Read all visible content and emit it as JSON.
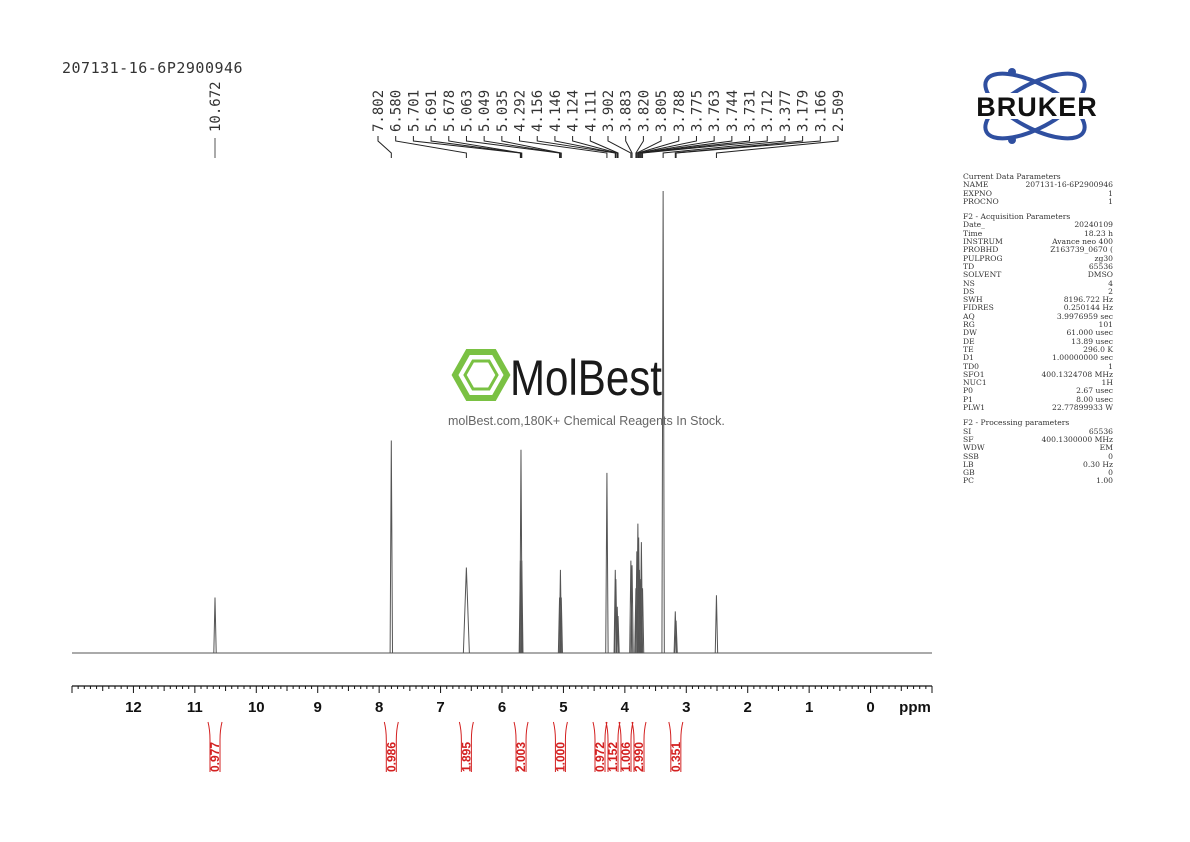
{
  "sample_id": "207131-16-6P2900946",
  "brand": "BRUKER",
  "watermark": {
    "title": "MolBest",
    "subtitle": "molBest.com,180K+ Chemical Reagents In Stock."
  },
  "colors": {
    "spectrum": "#555555",
    "integral": "#d32020",
    "watermark_green": "#7ac143",
    "bruker_blue": "#2f4fa0"
  },
  "chart_data": {
    "type": "line",
    "xlabel": "ppm",
    "xlim": [
      13,
      -1
    ],
    "x_reversed": true,
    "ticks": [
      "12",
      "11",
      "10",
      "9",
      "8",
      "7",
      "6",
      "5",
      "4",
      "3",
      "2",
      "1",
      "0"
    ],
    "peak_labels": [
      "10.672",
      "7.802",
      "6.580",
      "5.701",
      "5.691",
      "5.678",
      "5.063",
      "5.049",
      "5.035",
      "4.292",
      "4.156",
      "4.146",
      "4.124",
      "4.111",
      "3.902",
      "3.883",
      "3.820",
      "3.805",
      "3.788",
      "3.775",
      "3.763",
      "3.744",
      "3.731",
      "3.712",
      "3.377",
      "3.179",
      "3.166",
      "2.509"
    ],
    "peaks": [
      {
        "ppm": 10.672,
        "height": 0.12
      },
      {
        "ppm": 7.802,
        "height": 0.46
      },
      {
        "ppm": 6.58,
        "height": 0.185
      },
      {
        "ppm": 5.701,
        "height": 0.2
      },
      {
        "ppm": 5.691,
        "height": 0.44
      },
      {
        "ppm": 5.678,
        "height": 0.2
      },
      {
        "ppm": 5.063,
        "height": 0.12
      },
      {
        "ppm": 5.049,
        "height": 0.18
      },
      {
        "ppm": 5.035,
        "height": 0.12
      },
      {
        "ppm": 4.292,
        "height": 0.39
      },
      {
        "ppm": 4.156,
        "height": 0.18
      },
      {
        "ppm": 4.146,
        "height": 0.16
      },
      {
        "ppm": 4.124,
        "height": 0.1
      },
      {
        "ppm": 4.111,
        "height": 0.08
      },
      {
        "ppm": 3.902,
        "height": 0.2
      },
      {
        "ppm": 3.883,
        "height": 0.19
      },
      {
        "ppm": 3.82,
        "height": 0.14
      },
      {
        "ppm": 3.805,
        "height": 0.22
      },
      {
        "ppm": 3.788,
        "height": 0.28
      },
      {
        "ppm": 3.775,
        "height": 0.25
      },
      {
        "ppm": 3.763,
        "height": 0.18
      },
      {
        "ppm": 3.744,
        "height": 0.16
      },
      {
        "ppm": 3.731,
        "height": 0.24
      },
      {
        "ppm": 3.712,
        "height": 0.14
      },
      {
        "ppm": 3.377,
        "height": 1.0
      },
      {
        "ppm": 3.179,
        "height": 0.09
      },
      {
        "ppm": 3.166,
        "height": 0.07
      },
      {
        "ppm": 2.509,
        "height": 0.125
      }
    ],
    "integrals": [
      {
        "ppm": 10.672,
        "value": "0.977"
      },
      {
        "ppm": 7.802,
        "value": "0.986"
      },
      {
        "ppm": 6.58,
        "value": "1.895"
      },
      {
        "ppm": 5.69,
        "value": "2.003"
      },
      {
        "ppm": 5.049,
        "value": "1.000"
      },
      {
        "ppm": 4.292,
        "value": "0.972"
      },
      {
        "ppm": 4.14,
        "value": "1.152"
      },
      {
        "ppm": 3.89,
        "value": "1.006"
      },
      {
        "ppm": 3.76,
        "value": "2.990"
      },
      {
        "ppm": 3.17,
        "value": "0.351"
      }
    ]
  },
  "parameters": {
    "current": {
      "title": "Current Data Parameters",
      "rows": [
        {
          "k": "NAME",
          "v": "207131-16-6P2900946"
        },
        {
          "k": "EXPNO",
          "v": "1"
        },
        {
          "k": "PROCNO",
          "v": "1"
        }
      ]
    },
    "acquisition": {
      "title": "F2 - Acquisition Parameters",
      "rows": [
        {
          "k": "Date_",
          "v": "20240109"
        },
        {
          "k": "Time",
          "v": "18.23 h"
        },
        {
          "k": "INSTRUM",
          "v": "Avance neo 400"
        },
        {
          "k": "PROBHD",
          "v": "Z163739_0670 ("
        },
        {
          "k": "PULPROG",
          "v": "zg30"
        },
        {
          "k": "TD",
          "v": "65536"
        },
        {
          "k": "SOLVENT",
          "v": "DMSO"
        },
        {
          "k": "NS",
          "v": "4"
        },
        {
          "k": "DS",
          "v": "2"
        },
        {
          "k": "SWH",
          "v": "8196.722 Hz"
        },
        {
          "k": "FIDRES",
          "v": "0.250144 Hz"
        },
        {
          "k": "AQ",
          "v": "3.9976959 sec"
        },
        {
          "k": "RG",
          "v": "101"
        },
        {
          "k": "DW",
          "v": "61.000 usec"
        },
        {
          "k": "DE",
          "v": "13.89 usec"
        },
        {
          "k": "TE",
          "v": "296.0 K"
        },
        {
          "k": "D1",
          "v": "1.00000000 sec"
        },
        {
          "k": "TD0",
          "v": "1"
        },
        {
          "k": "SFO1",
          "v": "400.1324708 MHz"
        },
        {
          "k": "NUC1",
          "v": "1H"
        },
        {
          "k": "P0",
          "v": "2.67 usec"
        },
        {
          "k": "P1",
          "v": "8.00 usec"
        },
        {
          "k": "PLW1",
          "v": "22.77899933 W"
        }
      ]
    },
    "processing": {
      "title": "F2 - Processing parameters",
      "rows": [
        {
          "k": "SI",
          "v": "65536"
        },
        {
          "k": "SF",
          "v": "400.1300000 MHz"
        },
        {
          "k": "WDW",
          "v": "EM"
        },
        {
          "k": "SSB",
          "v": "0"
        },
        {
          "k": "LB",
          "v": "0.30 Hz"
        },
        {
          "k": "GB",
          "v": "0"
        },
        {
          "k": "PC",
          "v": "1.00"
        }
      ]
    }
  }
}
